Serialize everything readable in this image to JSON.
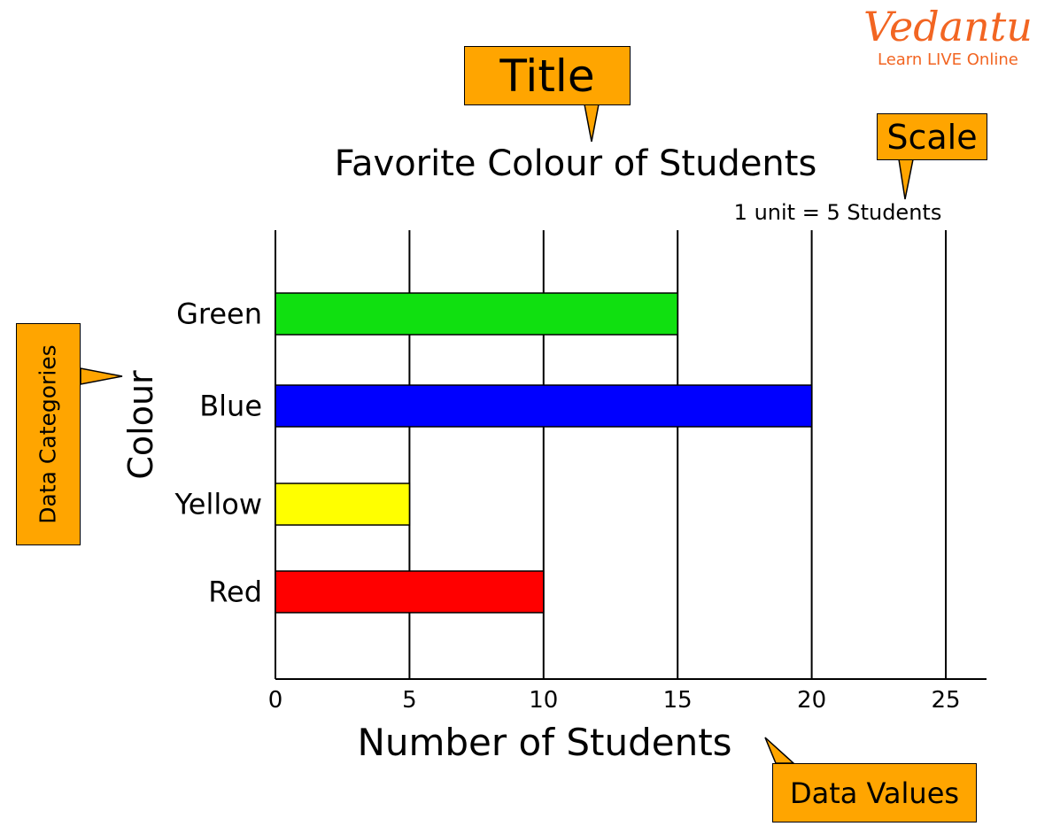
{
  "chart_data": {
    "type": "bar",
    "orientation": "horizontal",
    "title": "Favorite Colour of Students",
    "scale_note": "1 unit = 5 Students",
    "xlabel": "Number of Students",
    "ylabel": "Colour",
    "categories": [
      "Green",
      "Blue",
      "Yellow",
      "Red"
    ],
    "values": [
      15,
      20,
      5,
      10
    ],
    "colors": [
      "#10E010",
      "#0000FF",
      "#FFFF00",
      "#FF0000"
    ],
    "xlim": [
      0,
      26.5
    ],
    "xticks": [
      0,
      5,
      10,
      15,
      20,
      25
    ],
    "grid": "vertical"
  },
  "annotations": {
    "title": "Title",
    "scale": "Scale",
    "categories": "Data Categories",
    "values": "Data Values",
    "color": "#FFA500"
  },
  "logo": {
    "name": "Vedantu",
    "tagline": "Learn LIVE Online",
    "color": "#F26522"
  }
}
